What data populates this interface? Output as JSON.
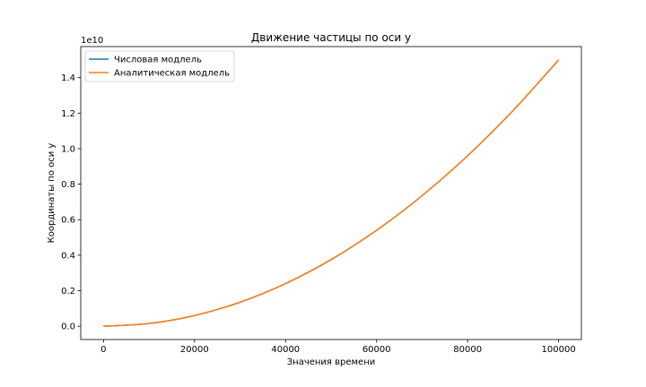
{
  "chart_data": {
    "type": "line",
    "title": "Движение частицы по оси y",
    "xlabel": "Значения времени",
    "ylabel": "Координаты по оси y",
    "offset_text": "1e10",
    "xlim": [
      -5000,
      105000
    ],
    "ylim": [
      -0.075,
      1.575
    ],
    "y_scale_note": "y values shown in units of 1e10",
    "x_ticks": [
      0,
      20000,
      40000,
      60000,
      80000,
      100000
    ],
    "x_tick_labels": [
      "0",
      "20000",
      "40000",
      "60000",
      "80000",
      "100000"
    ],
    "y_ticks": [
      0.0,
      0.2,
      0.4,
      0.6,
      0.8,
      1.0,
      1.2,
      1.4
    ],
    "y_tick_labels": [
      "0.0",
      "0.2",
      "0.4",
      "0.6",
      "0.8",
      "1.0",
      "1.2",
      "1.4"
    ],
    "legend_placement": "upper left",
    "grid": false,
    "colors": {
      "numeric": "#1f77b4",
      "analytic": "#ff7f0e"
    },
    "series": [
      {
        "name": "Числовая модлель",
        "x": [
          0,
          10000,
          20000,
          30000,
          40000,
          50000,
          60000,
          70000,
          80000,
          90000,
          100000
        ],
        "y": [
          0.0,
          0.015,
          0.06,
          0.135,
          0.24,
          0.375,
          0.54,
          0.735,
          0.96,
          1.215,
          1.5
        ]
      },
      {
        "name": "Аналитическая модлель",
        "x": [
          0,
          10000,
          20000,
          30000,
          40000,
          50000,
          60000,
          70000,
          80000,
          90000,
          100000
        ],
        "y": [
          0.0,
          0.015,
          0.06,
          0.135,
          0.24,
          0.375,
          0.54,
          0.735,
          0.96,
          1.215,
          1.5
        ]
      }
    ]
  }
}
